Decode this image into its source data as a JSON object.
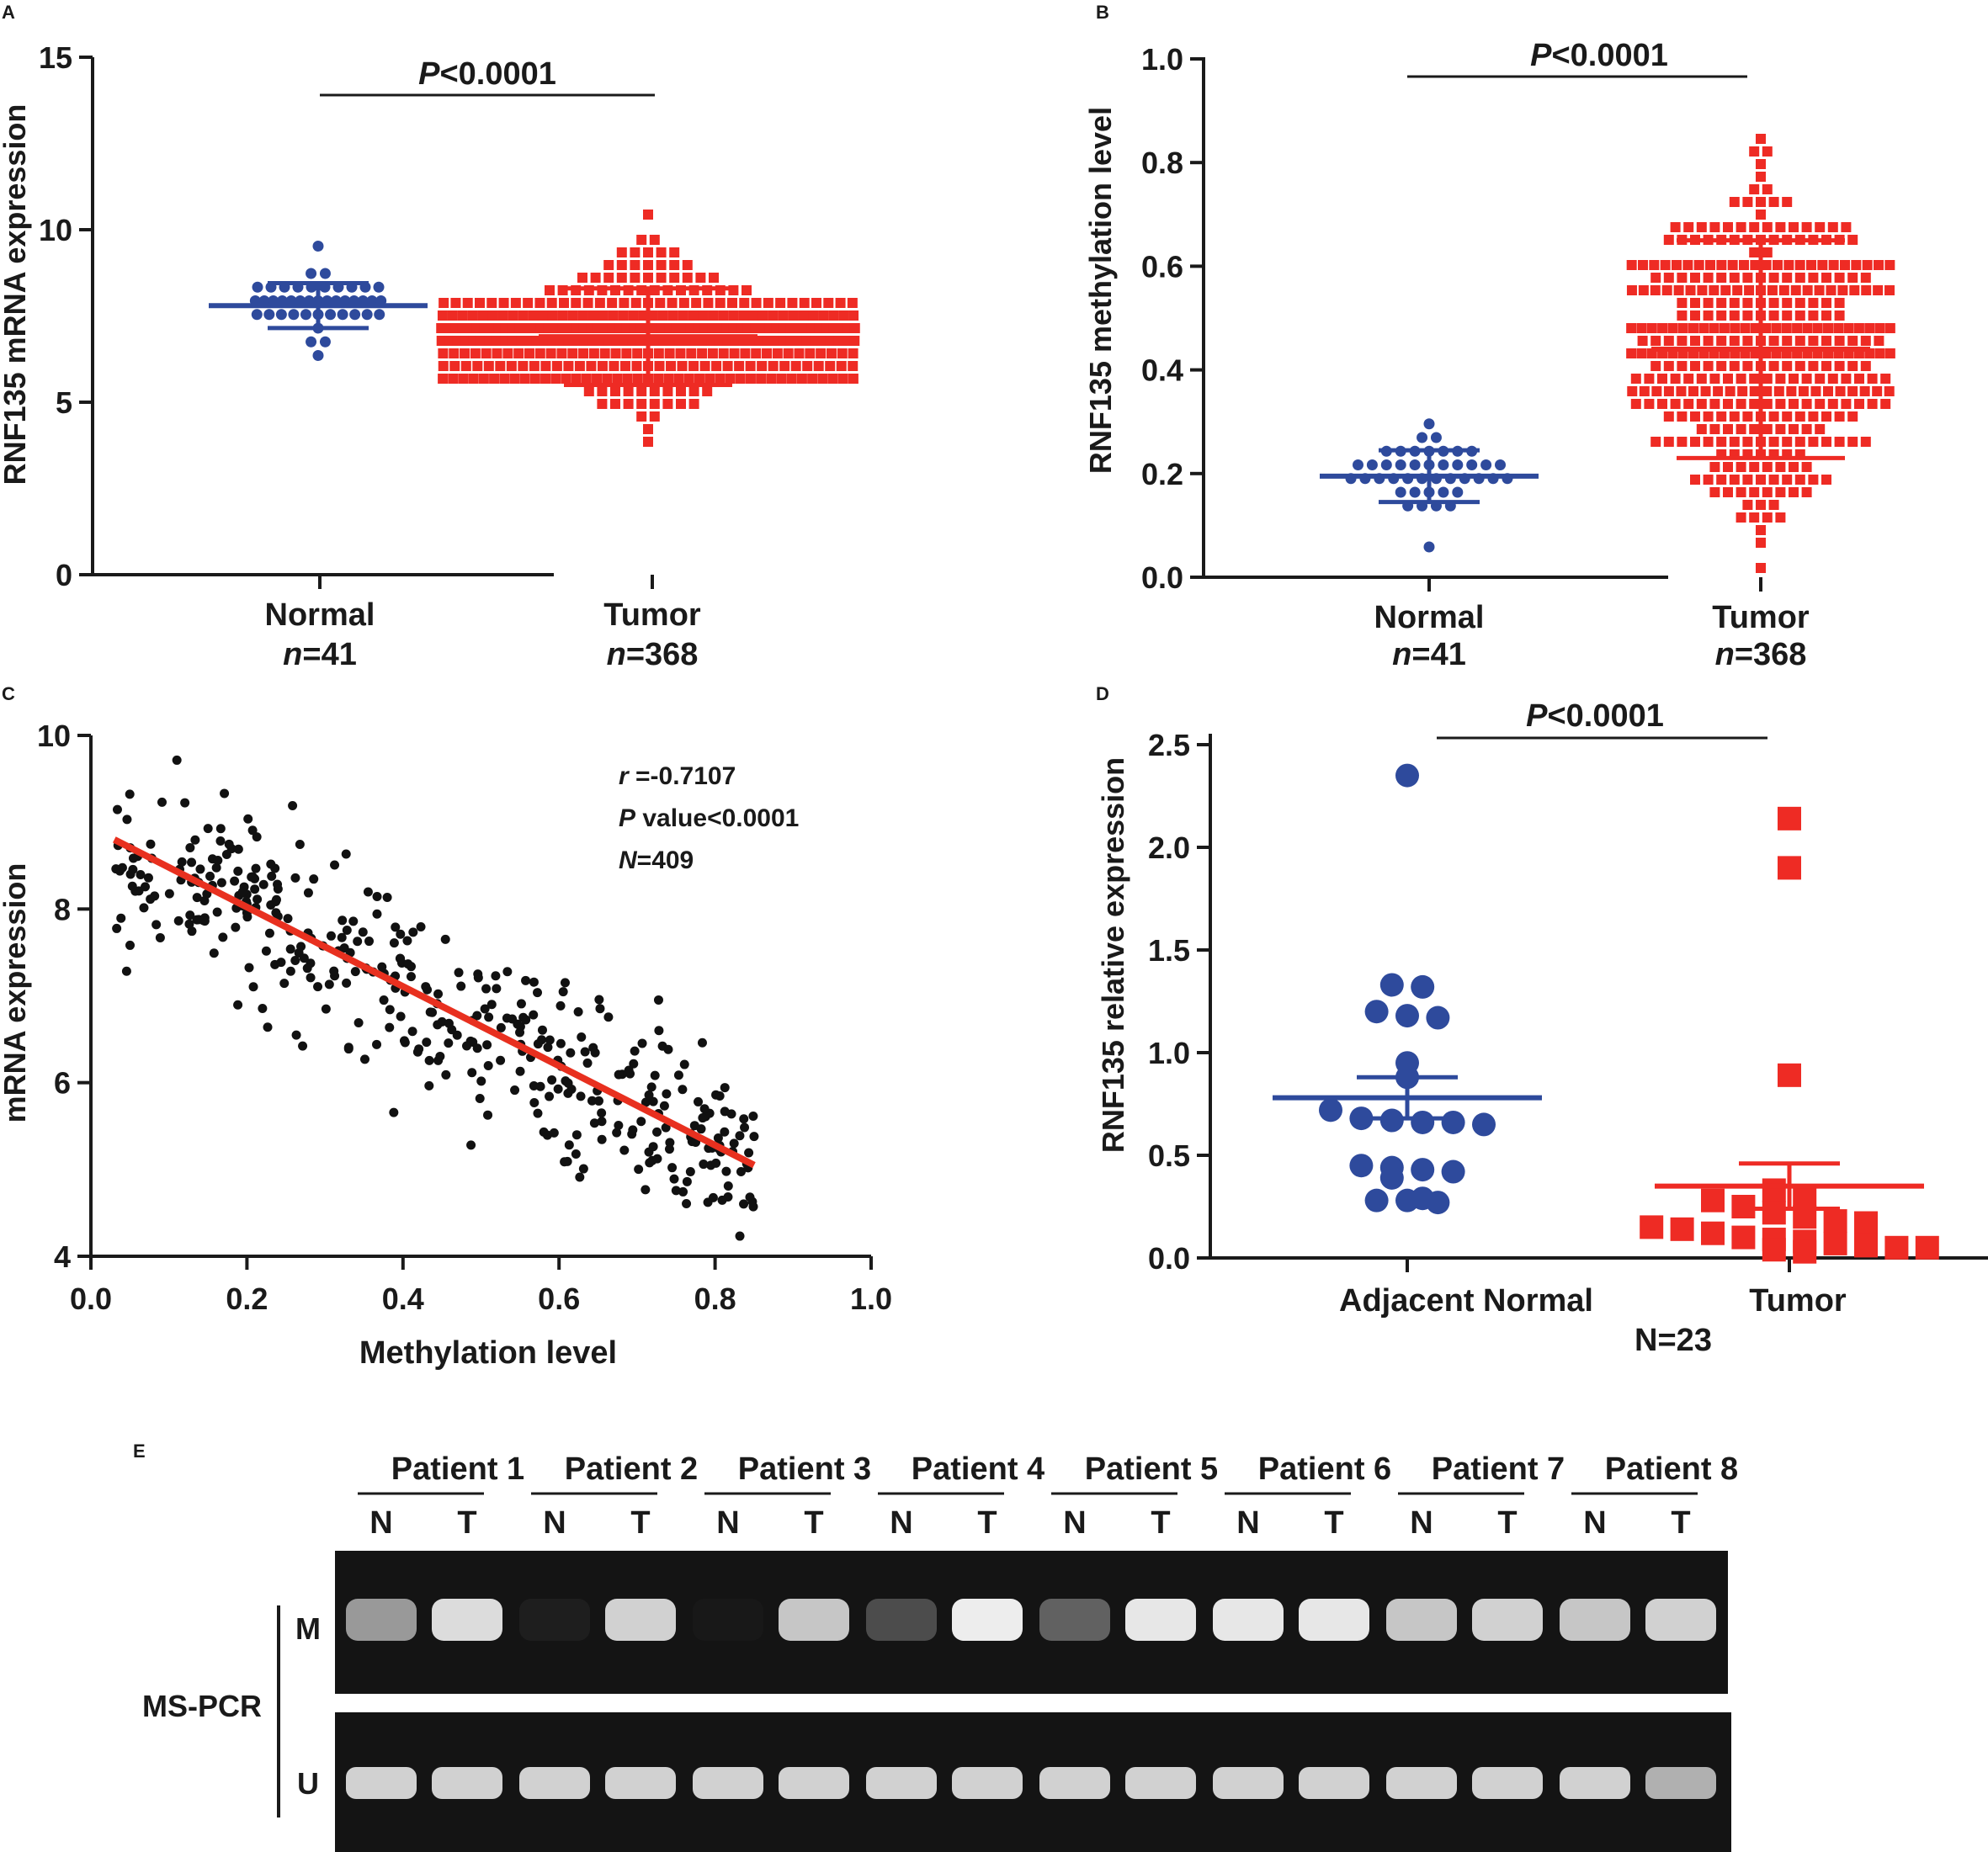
{
  "colors": {
    "normal": "#2e4a9c",
    "tumor": "#ee2b24",
    "axis": "#1a1a1a",
    "fit_line": "#e8301f",
    "gel_bg": "#141414",
    "gel_band": "#f2f2f2"
  },
  "chart_data": [
    {
      "panel": "A",
      "type": "scatter",
      "ylabel": "RNF135 mRNA expression",
      "ylim": [
        0,
        15
      ],
      "yticks": [
        "0",
        "5",
        "10",
        "15"
      ],
      "significance": {
        "p_prefix": "P",
        "p_suffix": "<0.0001"
      },
      "groups": [
        {
          "name": "Normal",
          "n_label": "=41",
          "n_prefix": "n",
          "n": 41,
          "mean": 7.8,
          "sd": 0.65,
          "min": 6.3,
          "max": 9.4,
          "marker": "circle",
          "color": "#2e4a9c"
        },
        {
          "name": "Tumor",
          "n_label": "=368",
          "n_prefix": "n",
          "n": 368,
          "mean": 6.9,
          "sd": 1.4,
          "min": 4.0,
          "max": 10.3,
          "marker": "square",
          "color": "#ee2b24"
        }
      ]
    },
    {
      "panel": "B",
      "type": "scatter",
      "ylabel": "RNF135 methylation level",
      "ylim": [
        0,
        1.0
      ],
      "yticks": [
        "0.0",
        "0.2",
        "0.4",
        "0.6",
        "0.8",
        "1.0"
      ],
      "significance": {
        "p_prefix": "P",
        "p_suffix": "<0.0001"
      },
      "groups": [
        {
          "name": "Normal",
          "n_label": "=41",
          "n_prefix": "n",
          "n": 41,
          "mean": 0.195,
          "sd": 0.05,
          "min": 0.05,
          "max": 0.29,
          "marker": "circle",
          "color": "#2e4a9c"
        },
        {
          "name": "Tumor",
          "n_label": "=368",
          "n_prefix": "n",
          "n": 368,
          "mean": 0.44,
          "sd": 0.21,
          "min": 0.03,
          "max": 0.85,
          "marker": "square",
          "color": "#ee2b24"
        }
      ]
    },
    {
      "panel": "C",
      "type": "scatter",
      "xlabel": "Methylation level",
      "ylabel": "mRNA expression",
      "xlim": [
        0,
        1.0
      ],
      "ylim": [
        4,
        10
      ],
      "xticks": [
        "0.0",
        "0.2",
        "0.4",
        "0.6",
        "0.8",
        "1.0"
      ],
      "yticks": [
        "4",
        "6",
        "8",
        "10"
      ],
      "n_points": 409,
      "fit_line": {
        "x": [
          0.03,
          0.85
        ],
        "y": [
          8.8,
          5.05
        ]
      },
      "stats": {
        "r_prefix": "r",
        "r_value": " =-0.7107",
        "p_prefix": "P",
        "p_value": " value<0.0001",
        "n_prefix": "N",
        "n_value": "=409"
      }
    },
    {
      "panel": "D",
      "type": "scatter",
      "ylabel": "RNF135 relative expression",
      "ylim": [
        0,
        2.5
      ],
      "yticks": [
        "0.0",
        "0.5",
        "1.0",
        "1.5",
        "2.0",
        "2.5"
      ],
      "significance": {
        "p_prefix": "P",
        "p_suffix": "<0.0001"
      },
      "footer": "N=23",
      "groups": [
        {
          "name": "Adjacent Normal",
          "mean": 0.78,
          "sem": 0.1,
          "marker": "circle",
          "color": "#2e4a9c",
          "values": [
            2.35,
            1.33,
            1.32,
            1.2,
            1.18,
            1.17,
            0.95,
            0.88,
            0.72,
            0.68,
            0.67,
            0.66,
            0.66,
            0.65,
            0.45,
            0.44,
            0.43,
            0.42,
            0.39,
            0.29,
            0.28,
            0.28,
            0.27
          ]
        },
        {
          "name": "Tumor",
          "mean": 0.35,
          "sem": 0.11,
          "marker": "square",
          "color": "#ee2b24",
          "values": [
            2.14,
            1.9,
            0.89,
            0.33,
            0.3,
            0.28,
            0.25,
            0.22,
            0.2,
            0.18,
            0.17,
            0.15,
            0.14,
            0.12,
            0.1,
            0.09,
            0.08,
            0.07,
            0.06,
            0.05,
            0.05,
            0.04,
            0.03
          ]
        }
      ]
    },
    {
      "panel": "E",
      "type": "gel",
      "side_label": "MS-PCR",
      "rows": [
        "M",
        "U"
      ],
      "lane_labels": [
        "N",
        "T"
      ],
      "patients": [
        "Patient 1",
        "Patient 2",
        "Patient 3",
        "Patient 4",
        "Patient 5",
        "Patient 6",
        "Patient 7",
        "Patient 8"
      ],
      "m_band_intensity": [
        0.6,
        0.9,
        0.05,
        0.85,
        0.02,
        0.8,
        0.25,
        0.98,
        0.35,
        0.95,
        0.95,
        0.95,
        0.8,
        0.85,
        0.8,
        0.85
      ],
      "u_band_intensity": [
        0.85,
        0.85,
        0.85,
        0.85,
        0.85,
        0.85,
        0.85,
        0.85,
        0.85,
        0.85,
        0.85,
        0.85,
        0.85,
        0.85,
        0.85,
        0.7
      ]
    }
  ]
}
